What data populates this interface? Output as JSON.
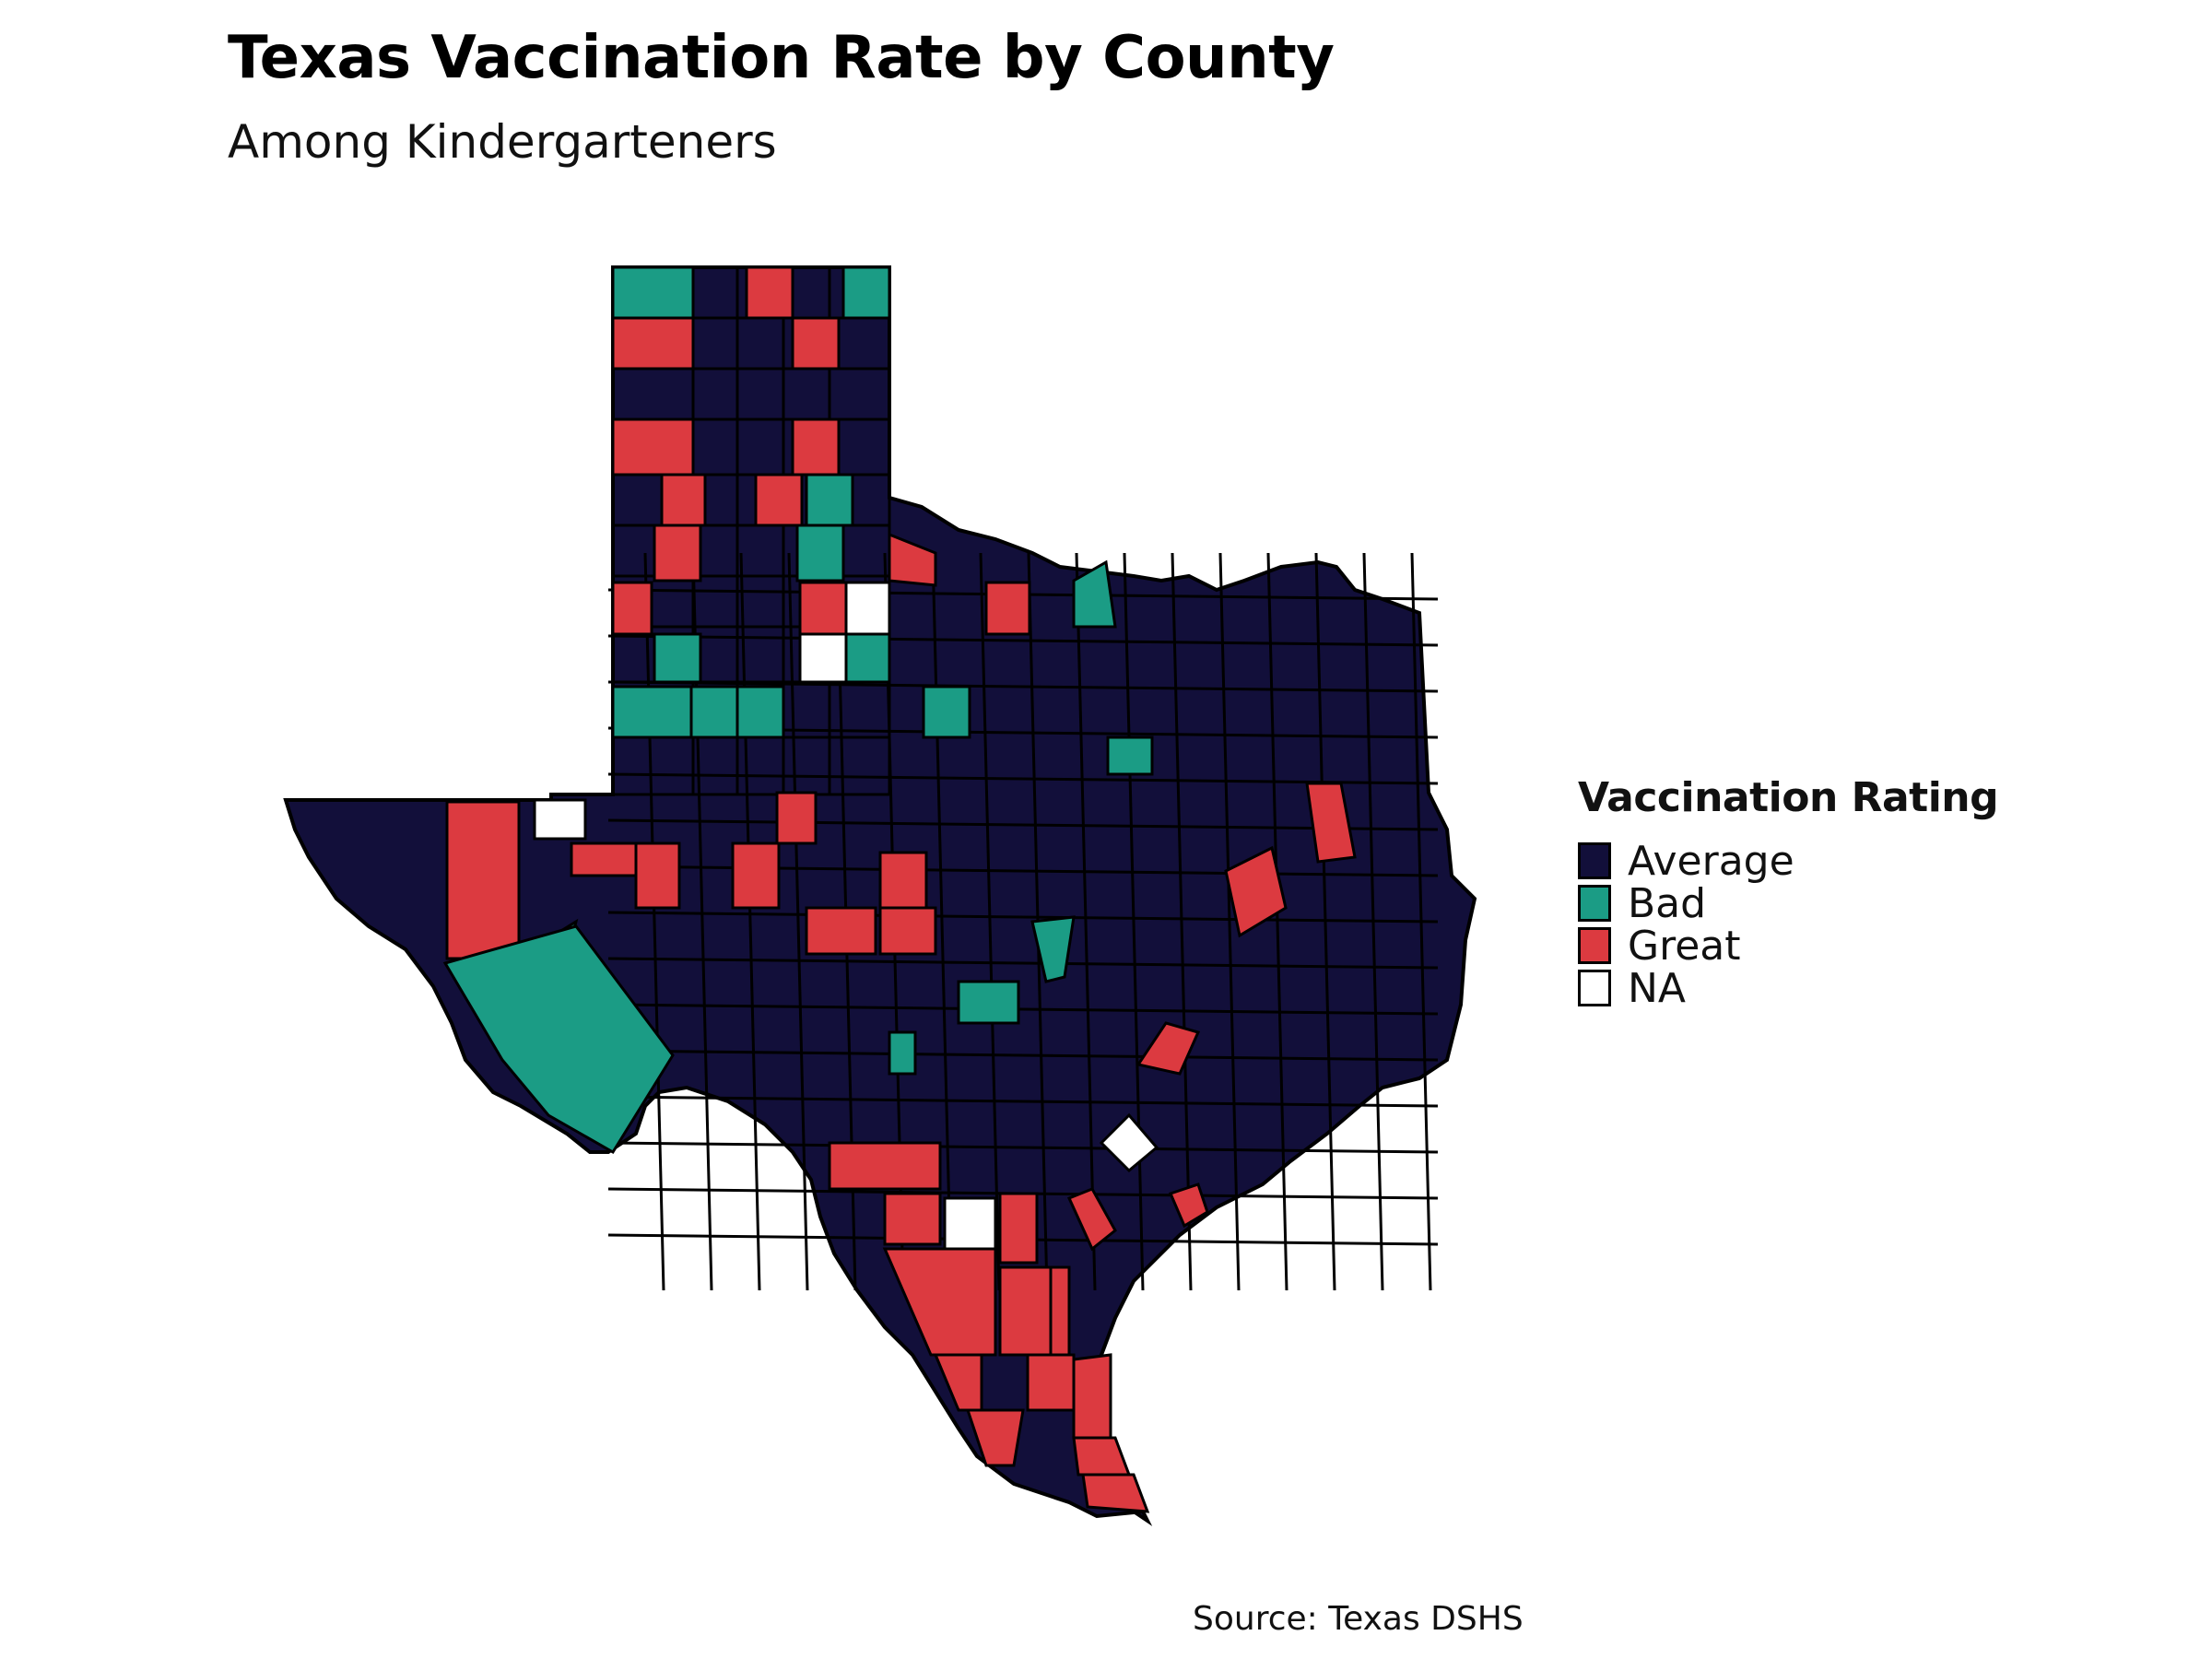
{
  "title": "Texas Vaccination Rate by County",
  "subtitle": "Among Kindergarteners",
  "caption": "Source: Texas DSHS",
  "legend": {
    "title": "Vaccination Rating",
    "items": [
      {
        "label": "Average",
        "color": "#120f3a"
      },
      {
        "label": "Bad",
        "color": "#1b9c85"
      },
      {
        "label": "Great",
        "color": "#dc3a40"
      },
      {
        "label": "NA",
        "color": "#ffffff"
      }
    ]
  },
  "chart_data": {
    "type": "choropleth",
    "region": "Texas counties",
    "categories": [
      "Average",
      "Bad",
      "Great",
      "NA"
    ],
    "colors": {
      "Average": "#120f3a",
      "Bad": "#1b9c85",
      "Great": "#dc3a40",
      "NA": "#ffffff"
    },
    "border_color": "#000000",
    "legend_position": "right"
  }
}
